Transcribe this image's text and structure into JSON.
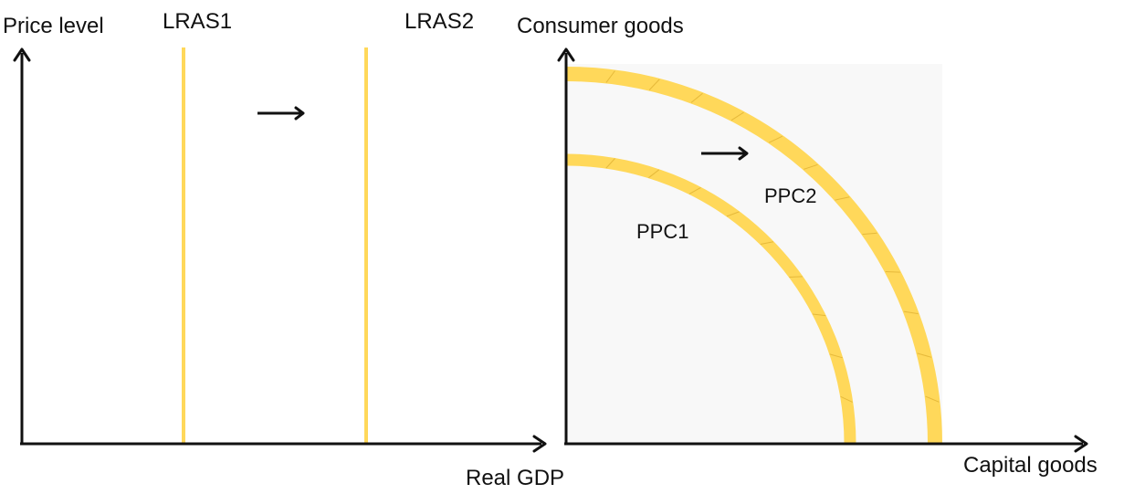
{
  "lras_diagram": {
    "y_axis_label": "Price level",
    "x_axis_label": "Real GDP",
    "curves": [
      {
        "label": "LRAS1"
      },
      {
        "label": "LRAS2"
      }
    ],
    "shift_direction": "right"
  },
  "ppc_diagram": {
    "y_axis_label": "Consumer goods",
    "x_axis_label": "Capital goods",
    "curves": [
      {
        "label": "PPC1"
      },
      {
        "label": "PPC2"
      }
    ],
    "shift_direction": "outward"
  },
  "colors": {
    "curve": "#FFD85A",
    "curve_hatch": "#E6B93A",
    "axis": "#111111",
    "ppc_panel_bg": "#F8F8F8"
  }
}
